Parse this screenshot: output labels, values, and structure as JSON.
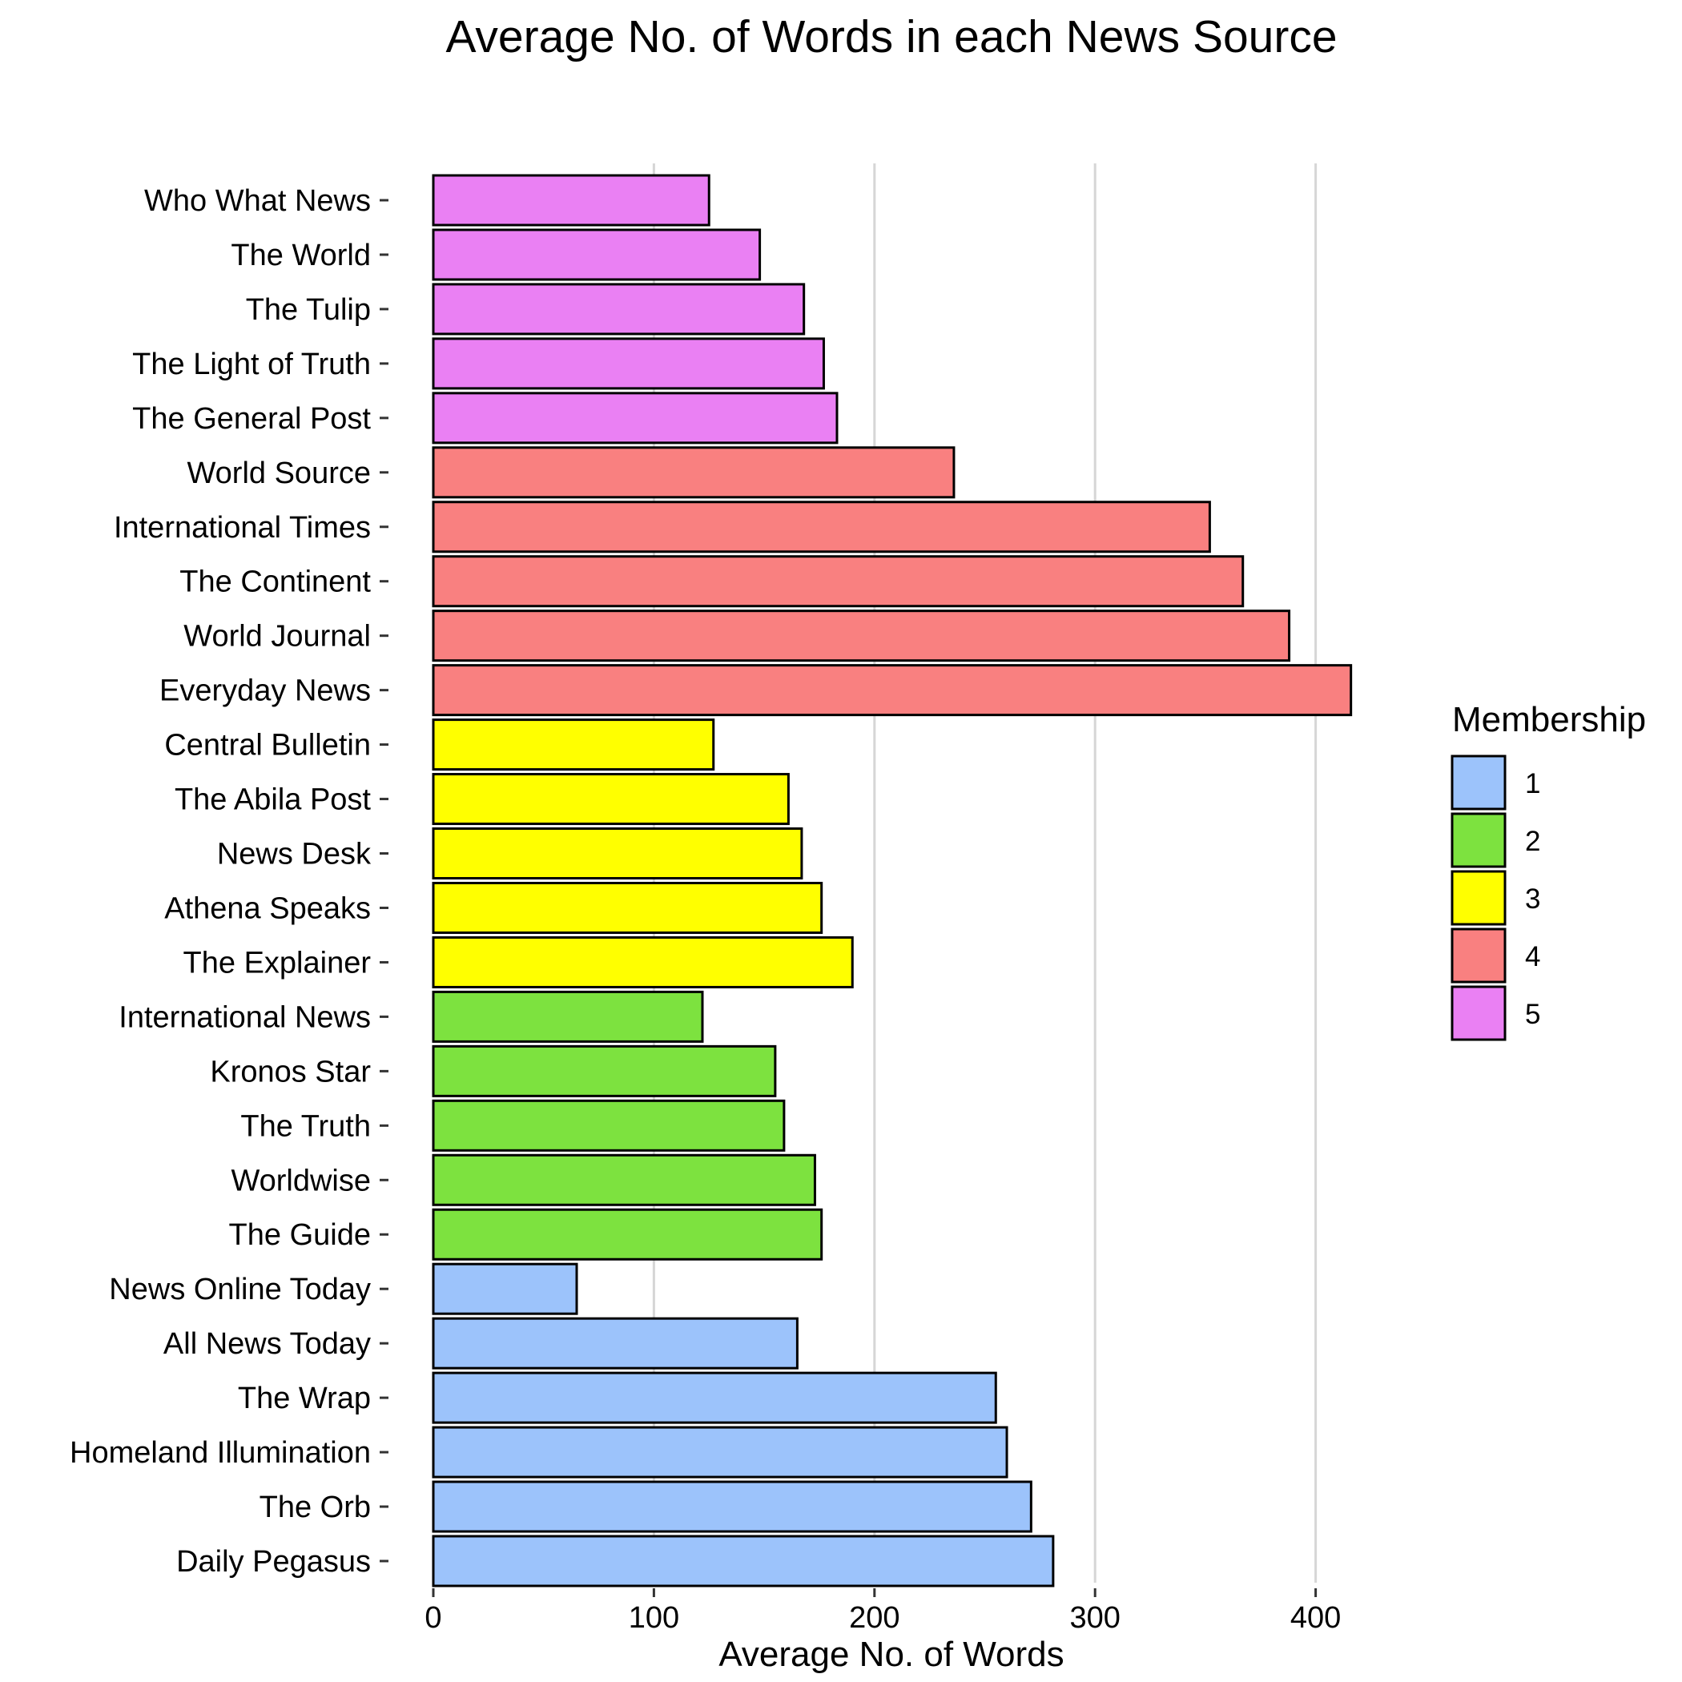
{
  "chart_data": {
    "type": "bar",
    "orientation": "horizontal",
    "title": "Average No. of Words in each News Source",
    "xlabel": "Average No. of Words",
    "ylabel": "",
    "xlim": [
      0,
      460
    ],
    "x_ticks": [
      0,
      100,
      200,
      300,
      400
    ],
    "grid": "vertical major gridlines",
    "legend": {
      "title": "Membership",
      "placement": "right",
      "entries": [
        {
          "label": "1",
          "color": "#9cc3fb"
        },
        {
          "label": "2",
          "color": "#7de23f"
        },
        {
          "label": "3",
          "color": "#ffff00"
        },
        {
          "label": "4",
          "color": "#f98080"
        },
        {
          "label": "5",
          "color": "#ea80f3"
        }
      ]
    },
    "categories_top_to_bottom": [
      "Who What News",
      "The World",
      "The Tulip",
      "The Light of Truth",
      "The General Post",
      "World Source",
      "International Times",
      "The Continent",
      "World Journal",
      "Everyday News",
      "Central Bulletin",
      "The Abila Post",
      "News Desk",
      "Athena Speaks",
      "The Explainer",
      "International News",
      "Kronos Star",
      "The Truth",
      "Worldwise",
      "The Guide",
      "News Online Today",
      "All News Today",
      "The Wrap",
      "Homeland Illumination",
      "The Orb",
      "Daily Pegasus"
    ],
    "values": [
      125,
      148,
      168,
      177,
      183,
      236,
      352,
      367,
      388,
      416,
      127,
      161,
      167,
      176,
      190,
      122,
      155,
      159,
      173,
      176,
      65,
      165,
      255,
      260,
      271,
      281
    ],
    "membership": [
      "5",
      "5",
      "5",
      "5",
      "5",
      "4",
      "4",
      "4",
      "4",
      "4",
      "3",
      "3",
      "3",
      "3",
      "3",
      "2",
      "2",
      "2",
      "2",
      "2",
      "1",
      "1",
      "1",
      "1",
      "1",
      "1"
    ]
  }
}
